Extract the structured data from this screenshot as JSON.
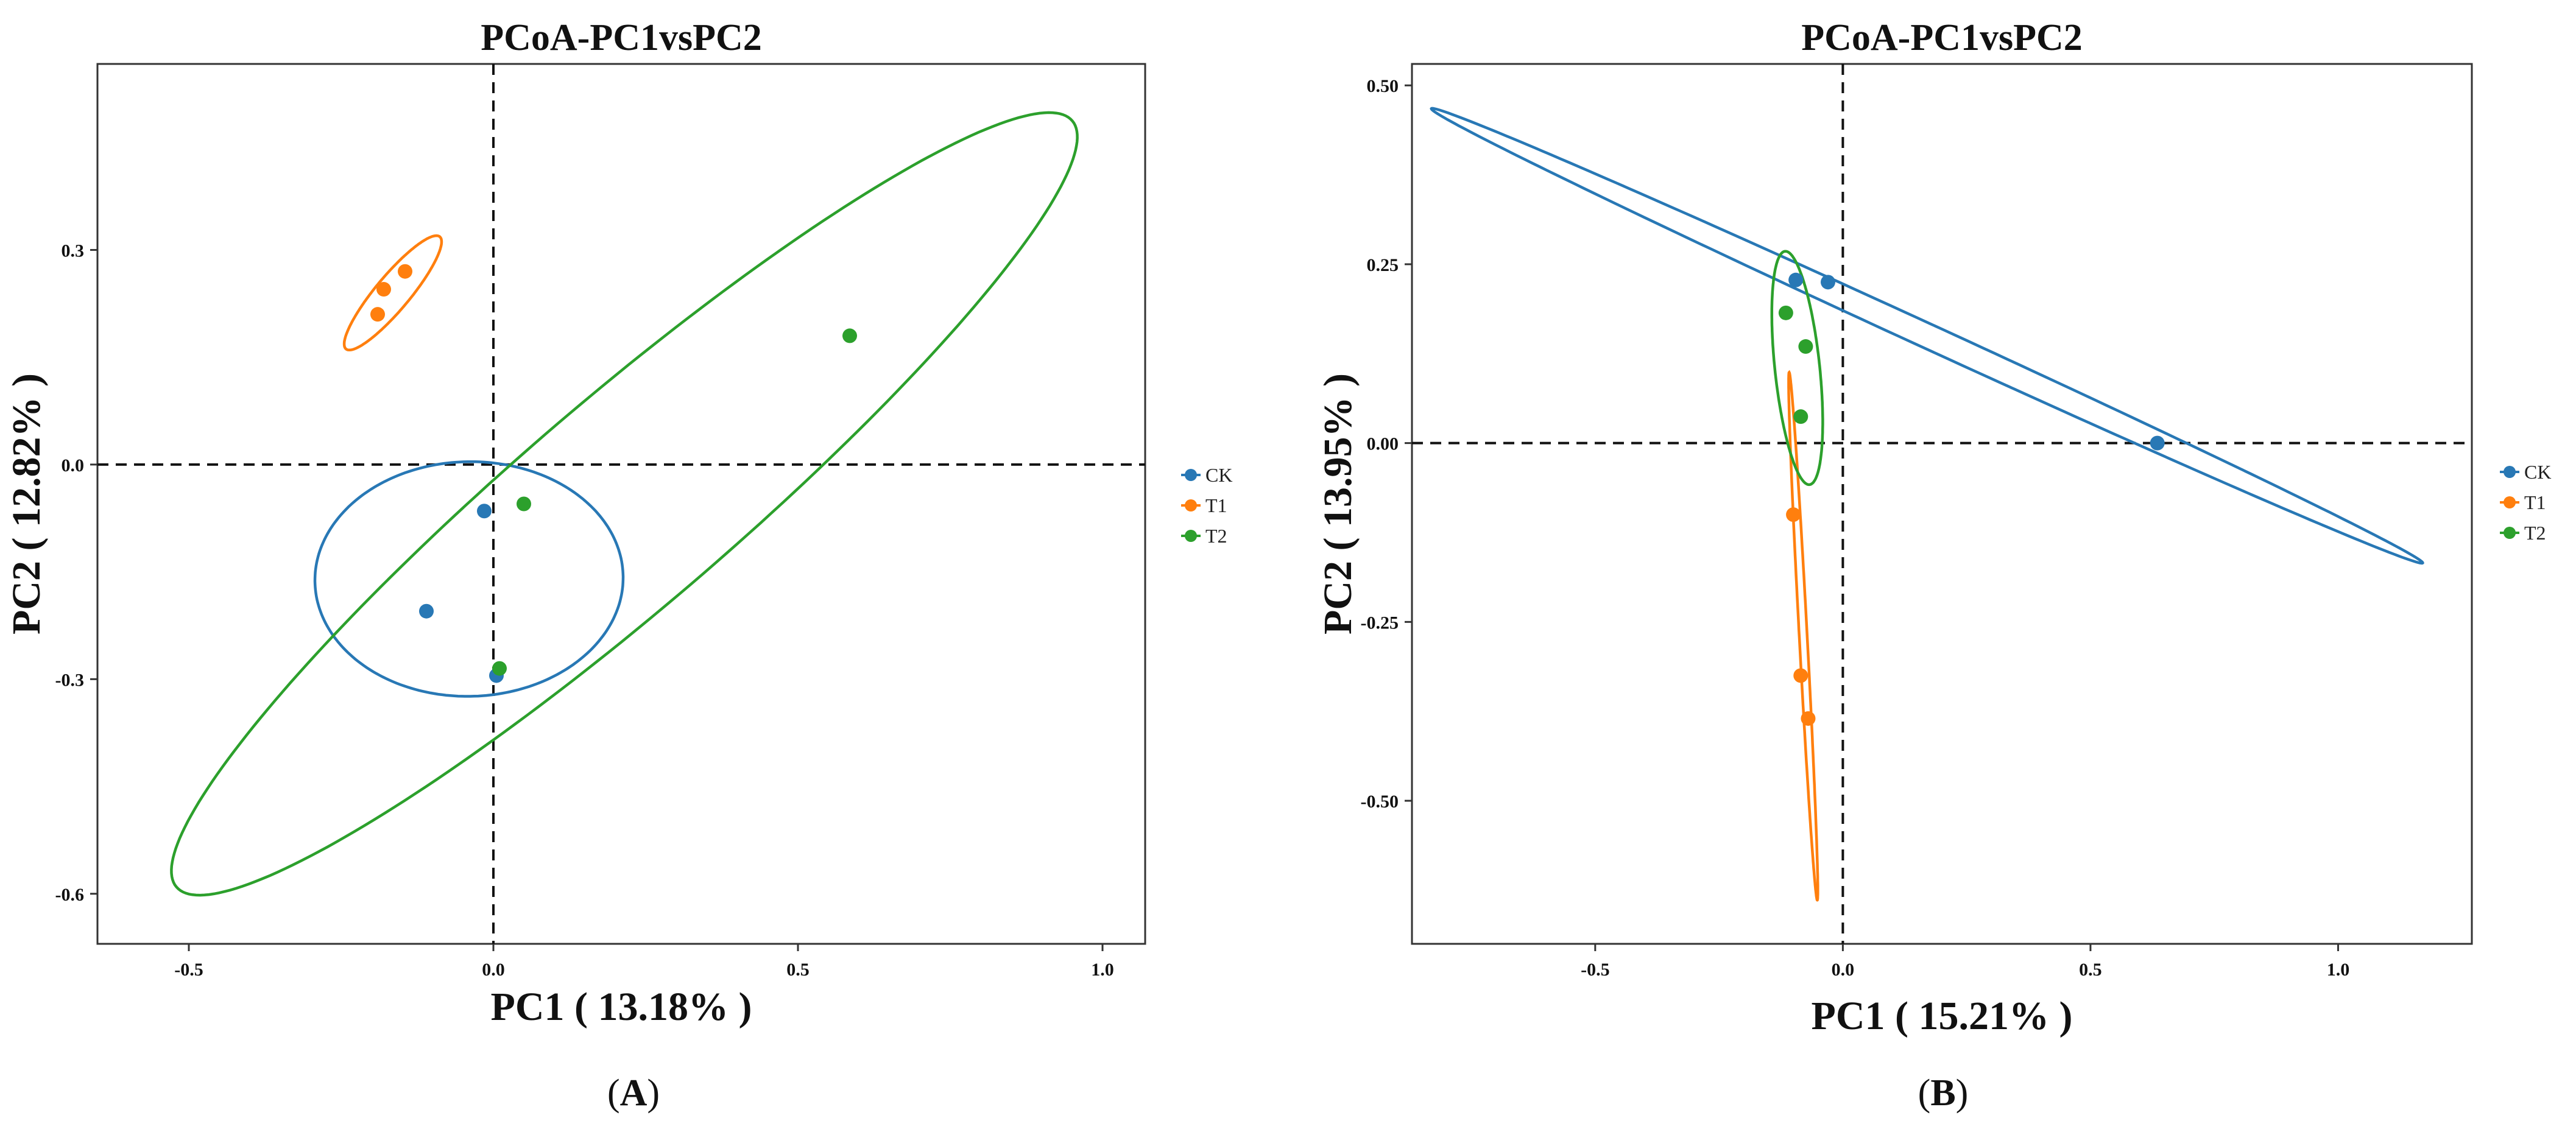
{
  "chart_data": [
    {
      "panel": "(A)",
      "panel_letter": "A",
      "type": "scatter",
      "title": "PCoA-PC1vsPC2",
      "xlabel": "PC1 ( 13.18% )",
      "ylabel": "PC2 ( 12.82% )",
      "xlim": [
        -0.65,
        1.07
      ],
      "ylim": [
        -0.67,
        0.56
      ],
      "xticks": [
        -0.5,
        0.0,
        0.5,
        1.0
      ],
      "xtick_labels": [
        "-0.5",
        "0.0",
        "0.5",
        "1.0"
      ],
      "yticks": [
        -0.6,
        -0.3,
        0.0,
        0.3
      ],
      "ytick_labels": [
        "-0.6",
        "-0.3",
        "0.0",
        "0.3"
      ],
      "reference_lines": {
        "x": 0,
        "y": 0,
        "style": "dashed"
      },
      "legend": {
        "placement": "right",
        "entries": [
          "CK",
          "T1",
          "T2"
        ]
      },
      "series": [
        {
          "name": "CK",
          "color": "#2878b5",
          "points": [
            [
              -0.015,
              -0.065
            ],
            [
              -0.11,
              -0.205
            ],
            [
              0.005,
              -0.295
            ]
          ],
          "ellipse": {
            "cx": -0.04,
            "cy": -0.16,
            "rx": 0.164,
            "ry": 0.253,
            "angle": 90.7
          }
        },
        {
          "name": "T1",
          "color": "#ff7f0e",
          "points": [
            [
              -0.18,
              0.245
            ],
            [
              -0.145,
              0.27
            ],
            [
              -0.19,
              0.21
            ]
          ],
          "ellipse": {
            "cx": -0.165,
            "cy": 0.24,
            "rx": 0.11,
            "ry": 0.026,
            "angle": 45
          }
        },
        {
          "name": "T2",
          "color": "#2ca02c",
          "points": [
            [
              0.585,
              0.18
            ],
            [
              0.05,
              -0.055
            ],
            [
              0.01,
              -0.285
            ]
          ],
          "ellipse": {
            "cx": 0.215,
            "cy": -0.055,
            "rx": 0.91,
            "ry": 0.155,
            "angle": 35.8
          }
        }
      ]
    },
    {
      "panel": "(B)",
      "panel_letter": "B",
      "type": "scatter",
      "title": "PCoA-PC1vsPC2",
      "xlabel": "PC1 ( 15.21% )",
      "ylabel": "PC2 ( 13.95% )",
      "xlim": [
        -0.87,
        1.27
      ],
      "ylim": [
        -0.7,
        0.53
      ],
      "xticks": [
        -0.5,
        0.0,
        0.5,
        1.0
      ],
      "xtick_labels": [
        "-0.5",
        "0.0",
        "0.5",
        "1.0"
      ],
      "yticks": [
        -0.5,
        -0.25,
        0.0,
        0.25,
        0.5
      ],
      "ytick_labels": [
        "-0.50",
        "-0.25",
        "0.00",
        "0.25",
        "0.50"
      ],
      "reference_lines": {
        "x": 0,
        "y": 0,
        "style": "dashed"
      },
      "legend": {
        "placement": "right",
        "entries": [
          "CK",
          "T1",
          "T2"
        ]
      },
      "series": [
        {
          "name": "CK",
          "color": "#2878b5",
          "points": [
            [
              -0.095,
              0.228
            ],
            [
              -0.03,
              0.225
            ],
            [
              0.635,
              0.0
            ]
          ],
          "ellipse": {
            "cx": 0.17,
            "cy": 0.15,
            "rx": 1.05,
            "ry": 0.018,
            "angle": -17.6
          }
        },
        {
          "name": "T1",
          "color": "#ff7f0e",
          "points": [
            [
              -0.1,
              -0.1
            ],
            [
              -0.085,
              -0.325
            ],
            [
              -0.07,
              -0.385
            ]
          ],
          "ellipse": {
            "cx": -0.08,
            "cy": -0.27,
            "rx": 0.37,
            "ry": 0.008,
            "angle": -85.6
          }
        },
        {
          "name": "T2",
          "color": "#2ca02c",
          "points": [
            [
              -0.115,
              0.182
            ],
            [
              -0.075,
              0.135
            ],
            [
              -0.085,
              0.037
            ]
          ],
          "ellipse": {
            "cx": -0.092,
            "cy": 0.105,
            "rx": 0.165,
            "ry": 0.045,
            "angle": -81
          }
        }
      ]
    }
  ]
}
